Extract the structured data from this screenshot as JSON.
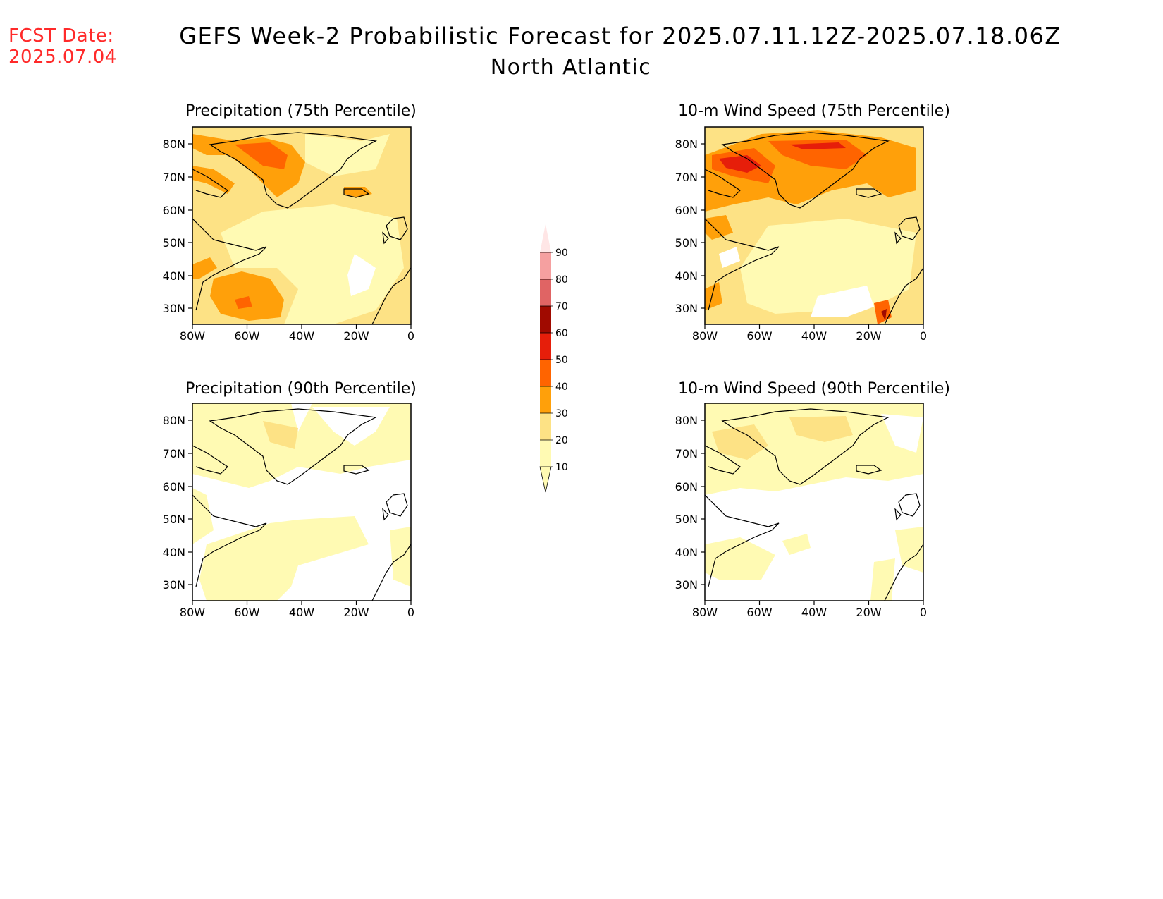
{
  "header": {
    "fcst_label": "FCST Date:",
    "fcst_date": "2025.07.04",
    "title": "GEFS Week-2 Probabilistic Forecast for 2025.07.11.12Z-2025.07.18.06Z",
    "subtitle": "North Atlantic"
  },
  "panels": [
    {
      "id": "precip75",
      "title": "Precipitation (75th Percentile)"
    },
    {
      "id": "wind75",
      "title": "10-m Wind Speed (75th Percentile)"
    },
    {
      "id": "precip90",
      "title": "Precipitation (90th Percentile)"
    },
    {
      "id": "wind90",
      "title": "10-m Wind Speed (90th Percentile)"
    }
  ],
  "axes": {
    "lat_labels": [
      "80N",
      "70N",
      "60N",
      "50N",
      "40N",
      "30N"
    ],
    "lon_labels": [
      "80W",
      "60W",
      "40W",
      "20W",
      "0"
    ]
  },
  "colorbar": {
    "labels": [
      "10",
      "20",
      "30",
      "40",
      "50",
      "60",
      "70",
      "80",
      "90"
    ],
    "colors": [
      "#fffab3",
      "#fde285",
      "#ffa00a",
      "#ff6400",
      "#e61e0a",
      "#a00a00",
      "#e06464",
      "#f5a0a0",
      "#ffe6e6"
    ]
  },
  "map_colors": {
    "c10": "#fffab3",
    "c20": "#fde285",
    "c30": "#ffa00a",
    "c40": "#ff6400",
    "c50": "#e61e0a",
    "c60": "#a00a00"
  }
}
